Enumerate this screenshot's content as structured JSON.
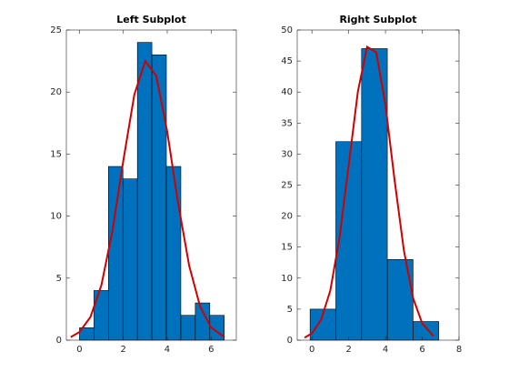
{
  "chart_data": [
    {
      "type": "histogram",
      "title": "Left Subplot",
      "bins": [
        0,
        0.66,
        1.32,
        1.98,
        2.64,
        3.3,
        3.96,
        4.62,
        5.28,
        5.94,
        6.6
      ],
      "counts": [
        1,
        4,
        14,
        13,
        24,
        23,
        14,
        2,
        3,
        2
      ],
      "color": "#0072bd",
      "fit": {
        "color": "#d00000",
        "x": [
          -0.4,
          0,
          0.5,
          1,
          1.5,
          2,
          2.5,
          3,
          3.5,
          4,
          4.5,
          5,
          5.5,
          6,
          6.6
        ],
        "values": [
          0.25,
          0.66,
          1.87,
          4.45,
          8.8,
          14.5,
          19.8,
          22.5,
          21.3,
          16.8,
          11.0,
          6.0,
          2.7,
          1.02,
          0.25
        ]
      },
      "xlim": [
        -0.6,
        7.15
      ],
      "xticks": [
        0,
        2,
        4,
        6
      ],
      "ylim": [
        0,
        25
      ],
      "yticks": [
        0,
        5,
        10,
        15,
        20,
        25
      ]
    },
    {
      "type": "histogram",
      "title": "Right Subplot",
      "bins": [
        -0.1,
        1.3,
        2.7,
        4.1,
        5.5,
        6.9
      ],
      "counts": [
        5,
        32,
        47,
        13,
        3
      ],
      "color": "#0072bd",
      "fit": {
        "color": "#d00000",
        "x": [
          -0.4,
          0,
          0.5,
          1,
          1.5,
          2,
          2.5,
          3,
          3.5,
          4,
          4.5,
          5,
          5.5,
          6,
          6.6
        ],
        "values": [
          0.4,
          1.1,
          3.3,
          8.0,
          16.5,
          28.2,
          40.1,
          47.3,
          46.4,
          37.9,
          25.7,
          14.5,
          6.8,
          2.7,
          0.67
        ]
      },
      "xlim": [
        -0.8,
        8
      ],
      "xticks": [
        0,
        2,
        4,
        6,
        8
      ],
      "ylim": [
        0,
        50
      ],
      "yticks": [
        0,
        5,
        10,
        15,
        20,
        25,
        30,
        35,
        40,
        45,
        50
      ]
    }
  ]
}
